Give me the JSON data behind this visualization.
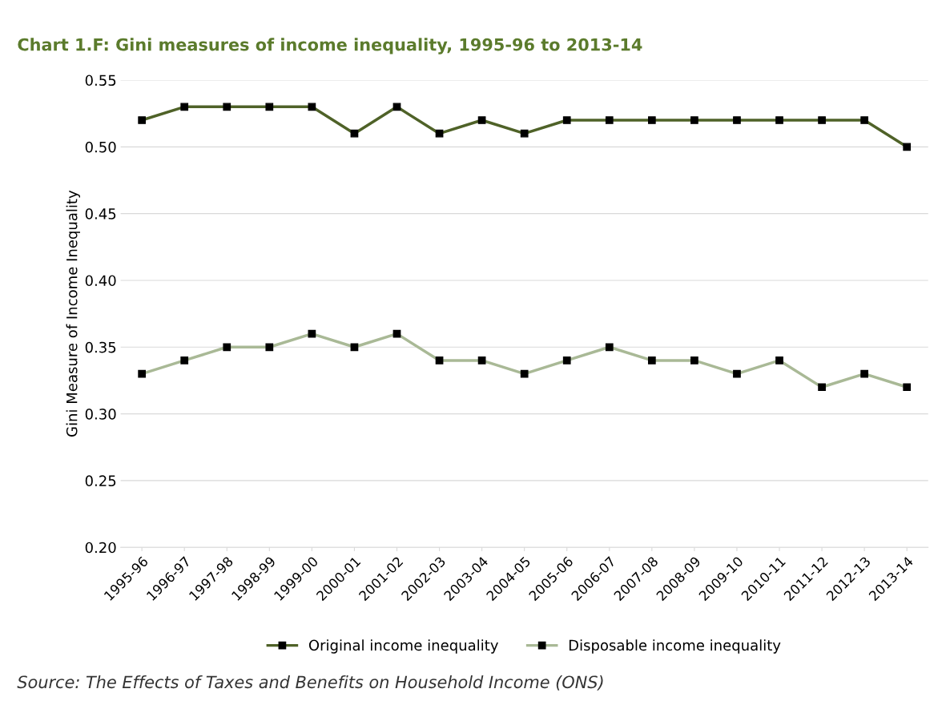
{
  "chart_data": {
    "type": "line",
    "title": "Chart 1.F: Gini measures of income inequality, 1995-96 to 2013-14",
    "ylabel": "Gini Measure of Income Inequality",
    "categories": [
      "1995-96",
      "1996-97",
      "1997-98",
      "1998-99",
      "1999-00",
      "2000-01",
      "2001-02",
      "2002-03",
      "2003-04",
      "2004-05",
      "2005-06",
      "2006-07",
      "2007-08",
      "2008-09",
      "2009-10",
      "2010-11",
      "2011-12",
      "2012-13",
      "2013-14"
    ],
    "series": [
      {
        "name": "Original income inequality",
        "color": "#4f6228",
        "values": [
          0.52,
          0.53,
          0.53,
          0.53,
          0.53,
          0.51,
          0.53,
          0.51,
          0.52,
          0.51,
          0.52,
          0.52,
          0.52,
          0.52,
          0.52,
          0.52,
          0.52,
          0.52,
          0.5
        ]
      },
      {
        "name": "Disposable income inequality",
        "color": "#a9b996",
        "values": [
          0.33,
          0.34,
          0.35,
          0.35,
          0.36,
          0.35,
          0.36,
          0.34,
          0.34,
          0.33,
          0.34,
          0.35,
          0.34,
          0.34,
          0.33,
          0.34,
          0.32,
          0.33,
          0.32
        ]
      }
    ],
    "ylim": [
      0.2,
      0.55
    ],
    "yticks": [
      {
        "value": 0.2,
        "label": "0.20"
      },
      {
        "value": 0.25,
        "label": "0.25"
      },
      {
        "value": 0.3,
        "label": "0.30"
      },
      {
        "value": 0.35,
        "label": "0.35"
      },
      {
        "value": 0.4,
        "label": "0.40"
      },
      {
        "value": 0.45,
        "label": "0.45"
      },
      {
        "value": 0.5,
        "label": "0.50"
      },
      {
        "value": 0.55,
        "label": "0.55"
      }
    ],
    "grid": "y",
    "legend": "bottom",
    "marker": "square",
    "line_style": "solid",
    "annotations": [
      "Source: The Effects of Taxes and Benefits on Household Income (ONS)"
    ]
  }
}
